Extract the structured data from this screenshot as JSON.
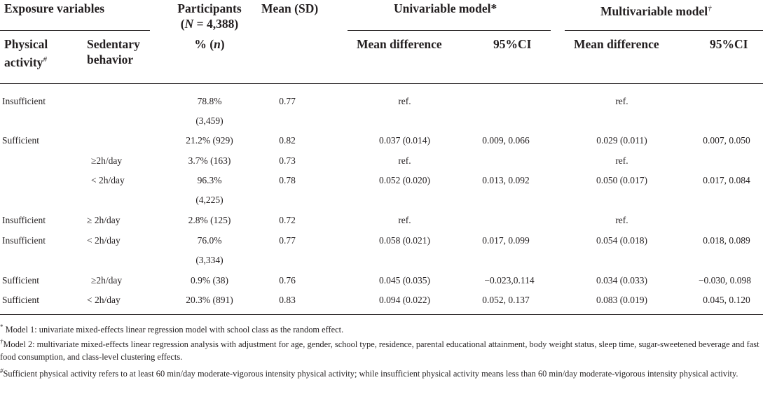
{
  "headers": {
    "exposure": "Exposure variables",
    "participants_line1": "Participants",
    "participants_line2_pre": "(",
    "participants_line2_n": "N",
    "participants_line2_post": " = 4,388)",
    "mean_sd": "Mean (SD)",
    "univariable": "Univariable model*",
    "multivariable": "Multivariable model",
    "multivariable_mark": "†",
    "physical_line1": "Physical",
    "physical_line2": "activity",
    "physical_mark": "#",
    "sedentary_line1": "Sedentary",
    "sedentary_line2": "behavior",
    "pct_pre": "% (",
    "pct_n": "n",
    "pct_post": ")",
    "uni_mean_diff": "Mean difference",
    "uni_ci": "95%CI",
    "multi_mean_diff": "Mean difference",
    "multi_ci": "95%CI"
  },
  "rows": [
    {
      "physical": "Insufficient",
      "sedentary": "",
      "participants": "78.8%",
      "participants_cont": "(3,459)",
      "mean": "0.77",
      "uni_md": "ref.",
      "uni_ci": "",
      "multi_md": "ref.",
      "multi_ci": ""
    },
    {
      "physical": "Sufficient",
      "sedentary": "",
      "participants": "21.2% (929)",
      "participants_cont": "",
      "mean": "0.82",
      "uni_md": "0.037 (0.014)",
      "uni_ci": "0.009, 0.066",
      "multi_md": "0.029 (0.011)",
      "multi_ci": "0.007, 0.050"
    },
    {
      "physical": "",
      "sedentary": "≥2h/day",
      "participants": "3.7% (163)",
      "participants_cont": "",
      "mean": "0.73",
      "uni_md": "ref.",
      "uni_ci": "",
      "multi_md": "ref.",
      "multi_ci": ""
    },
    {
      "physical": "",
      "sedentary": "< 2h/day",
      "participants": "96.3%",
      "participants_cont": "(4,225)",
      "mean": "0.78",
      "uni_md": "0.052 (0.020)",
      "uni_ci": "0.013, 0.092",
      "multi_md": "0.050 (0.017)",
      "multi_ci": "0.017, 0.084"
    },
    {
      "physical": "Insufficient",
      "sedentary": "≥ 2h/day",
      "participants": "2.8% (125)",
      "participants_cont": "",
      "mean": "0.72",
      "uni_md": "ref.",
      "uni_ci": "",
      "multi_md": "ref.",
      "multi_ci": ""
    },
    {
      "physical": "Insufficient",
      "sedentary": "< 2h/day",
      "participants": "76.0%",
      "participants_cont": "(3,334)",
      "mean": "0.77",
      "uni_md": "0.058 (0.021)",
      "uni_ci": "0.017, 0.099",
      "multi_md": "0.054 (0.018)",
      "multi_ci": "0.018, 0.089"
    },
    {
      "physical": "Sufficient",
      "sedentary": "≥2h/day",
      "participants": "0.9% (38)",
      "participants_cont": "",
      "mean": "0.76",
      "uni_md": "0.045 (0.035)",
      "uni_ci": "−0.023,0.114",
      "multi_md": "0.034 (0.033)",
      "multi_ci": "−0.030, 0.098"
    },
    {
      "physical": "Sufficient",
      "sedentary": "< 2h/day",
      "participants": "20.3% (891)",
      "participants_cont": "",
      "mean": "0.83",
      "uni_md": "0.094 (0.022)",
      "uni_ci": "0.052, 0.137",
      "multi_md": "0.083 (0.019)",
      "multi_ci": "0.045, 0.120"
    }
  ],
  "footnotes": {
    "fn1_mark": "*",
    "fn1_text": " Model 1: univariate mixed-effects linear regression model with school class as the random effect.",
    "fn2_mark": "†",
    "fn2_text": "Model 2: multivariate mixed-effects linear regression analysis with adjustment for age, gender, school type, residence, parental educational attainment, body weight status, sleep time, sugar-sweetened beverage and fast food consumption, and class-level clustering effects.",
    "fn3_mark": "#",
    "fn3_text": "Sufficient physical activity refers to at least 60 min/day moderate-vigorous intensity physical activity; while insufficient physical activity means less than 60 min/day moderate-vigorous intensity physical activity."
  }
}
